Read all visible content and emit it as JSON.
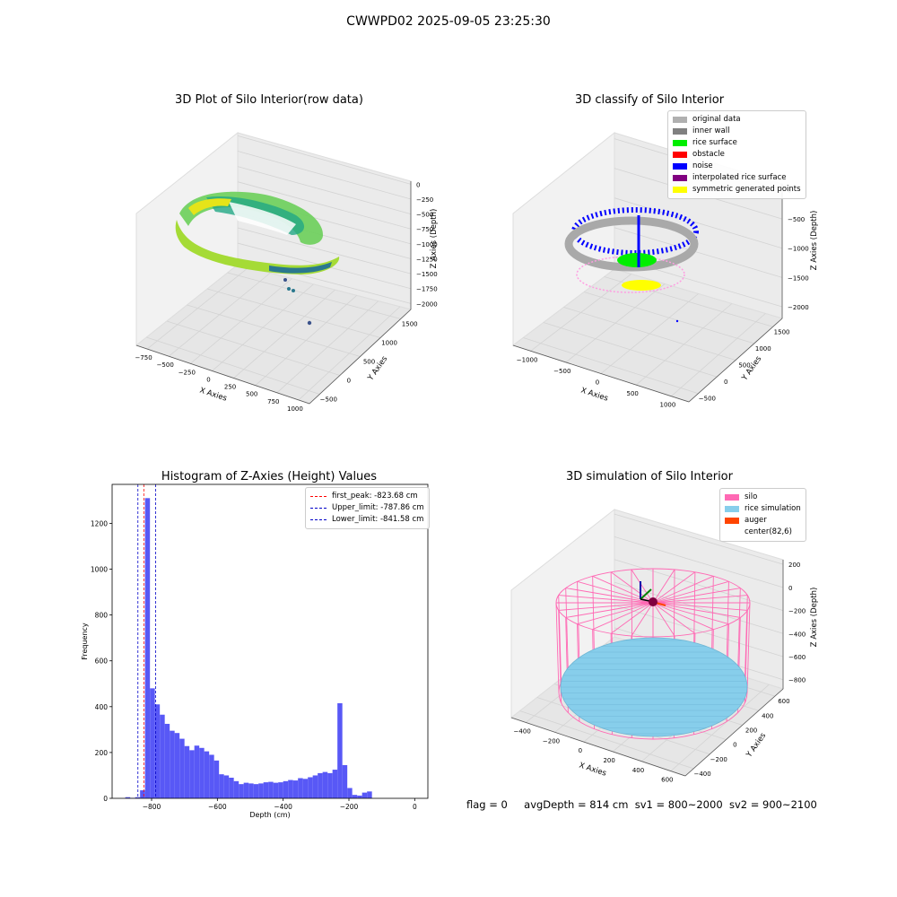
{
  "figure": {
    "suptitle": "CWWPD02 2025-09-05 23:25:30",
    "status": {
      "flag": "flag = 0",
      "avg_depth": "avgDepth = 814 cm",
      "sv1": "sv1 = 800~2000",
      "sv2": "sv2 = 900~2100"
    }
  },
  "colors": {
    "hist_bar": "#4f4ff5",
    "first_peak_line": "#ff0000",
    "limit_line": "#0000c8",
    "silo_wire": "#ff69b4",
    "rice_sim": "#87ceeb",
    "pane_face": "#f2f2f2"
  },
  "chart_data": [
    {
      "type": "scatter",
      "title": "3D Plot of Silo Interior(row data)",
      "xlabel": "X Axies",
      "ylabel": "Y Axies",
      "zlabel": "Z Axies (Depth)",
      "x_ticks": [
        "−750",
        "−500",
        "−250",
        "0",
        "250",
        "500",
        "750",
        "1000"
      ],
      "y_ticks": [
        "−500",
        "0",
        "500",
        "1000",
        "1500"
      ],
      "z_ticks": [
        "0",
        "−250",
        "−500",
        "−750",
        "−1000",
        "−1250",
        "−1500",
        "−1750",
        "−2000"
      ],
      "colormap": "viridis"
    },
    {
      "type": "scatter",
      "title": "3D classify of Silo Interior",
      "xlabel": "X Axies",
      "ylabel": "Y Axies",
      "zlabel": "Z Axies (Depth)",
      "x_ticks": [
        "−1000",
        "−500",
        "0",
        "500",
        "1000"
      ],
      "y_ticks": [
        "−500",
        "0",
        "500",
        "1000",
        "1500"
      ],
      "z_ticks": [
        "0",
        "−500",
        "−1000",
        "−1500",
        "−2000"
      ],
      "legend": [
        {
          "label": "original data",
          "color": "#b0b0b0"
        },
        {
          "label": "inner wall",
          "color": "#808080"
        },
        {
          "label": "rice surface",
          "color": "#00ee00"
        },
        {
          "label": "obstacle",
          "color": "#ff0000"
        },
        {
          "label": "noise",
          "color": "#0000ff"
        },
        {
          "label": "interpolated rice surface",
          "color": "#800080"
        },
        {
          "label": "symmetric generated points",
          "color": "#ffff00"
        }
      ]
    },
    {
      "type": "bar",
      "title": "Histogram of Z-Axies (Height) Values",
      "xlabel": "Depth (cm)",
      "ylabel": "Frequency",
      "xlim": [
        -920,
        40
      ],
      "ylim": [
        0,
        1370
      ],
      "x_ticks": [
        -800,
        -600,
        -400,
        -200,
        0
      ],
      "x_tick_labels": [
        "−800",
        "−600",
        "−400",
        "−200",
        "0"
      ],
      "y_ticks": [
        0,
        200,
        400,
        600,
        800,
        1000,
        1200
      ],
      "y_tick_labels": [
        "0",
        "200",
        "400",
        "600",
        "800",
        "1000",
        "1200"
      ],
      "bin_start": -880,
      "bin_width": 15,
      "values": [
        5,
        2,
        5,
        35,
        1310,
        480,
        410,
        365,
        325,
        295,
        285,
        260,
        228,
        210,
        230,
        220,
        205,
        190,
        165,
        105,
        100,
        90,
        75,
        62,
        68,
        65,
        62,
        65,
        70,
        72,
        68,
        70,
        75,
        80,
        78,
        88,
        85,
        92,
        100,
        110,
        115,
        110,
        125,
        415,
        145,
        45,
        15,
        12,
        25,
        30
      ],
      "vlines": [
        {
          "label": "first_peak: -823.68 cm",
          "x": -823.68,
          "color": "#ff0000"
        },
        {
          "label": "Upper_limit: -787.86 cm",
          "x": -787.86,
          "color": "#0000c8"
        },
        {
          "label": "Lower_limit: -841.58 cm",
          "x": -841.58,
          "color": "#0000c8"
        }
      ]
    },
    {
      "type": "scatter",
      "title": "3D simulation of Silo Interior",
      "xlabel": "X Axies",
      "ylabel": "Y Axies",
      "zlabel": "Z Axies (Depth)",
      "x_ticks": [
        "−400",
        "−200",
        "0",
        "200",
        "400",
        "600"
      ],
      "y_ticks": [
        "−400",
        "−200",
        "0",
        "200",
        "400",
        "600"
      ],
      "z_ticks": [
        "200",
        "0",
        "−200",
        "−400",
        "−600",
        "−800"
      ],
      "legend": [
        {
          "label": "silo",
          "color": "#ff69b4"
        },
        {
          "label": "rice simulation",
          "color": "#87ceeb"
        },
        {
          "label": "auger",
          "color": "#ff4500"
        },
        {
          "label": "center(82,6)",
          "color": ""
        }
      ]
    }
  ]
}
